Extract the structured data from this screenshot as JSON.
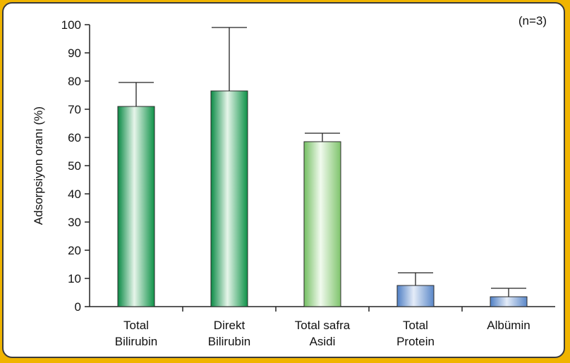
{
  "chart_data": {
    "type": "bar",
    "title": "",
    "annotation": "(n=3)",
    "ylabel": "Adsorpsiyon oranı (%)",
    "xlabel": "",
    "ylim": [
      0,
      100
    ],
    "yticks": [
      0,
      10,
      20,
      30,
      40,
      50,
      60,
      70,
      80,
      90,
      100
    ],
    "grid": false,
    "categories": [
      [
        "Total",
        "Bilirubin"
      ],
      [
        "Direkt",
        "Bilirubin"
      ],
      [
        "Total safra",
        "Asidi"
      ],
      [
        "Total",
        "Protein"
      ],
      [
        "Albümin"
      ]
    ],
    "values": [
      71,
      76.5,
      58.5,
      7.5,
      3.5
    ],
    "error_upper": [
      79.5,
      99,
      61.5,
      12,
      6.5
    ],
    "colors": {
      "dark_green": "#1fa35a",
      "light_green": "#8dcc7a",
      "blue": "#6f93cc",
      "frame_background": "#f0b400"
    },
    "bar_color_keys": [
      "dark_green",
      "dark_green",
      "light_green",
      "blue",
      "blue"
    ]
  }
}
